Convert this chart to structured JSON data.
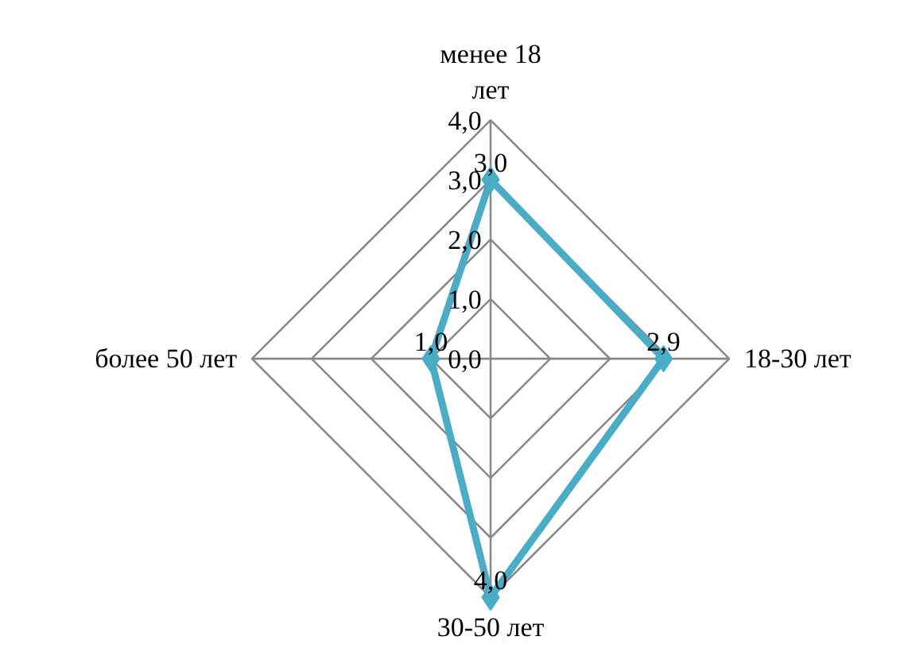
{
  "chart_data": {
    "type": "radar",
    "categories": [
      "менее 18 лет",
      "18-30 лет",
      "30-50 лет",
      "более 50 лет"
    ],
    "series": [
      {
        "color": "#4bacc6",
        "values": [
          3.0,
          2.9,
          4.0,
          1.0
        ],
        "value_labels": [
          "3,0",
          "2,9",
          "4,0",
          "1,0"
        ]
      }
    ],
    "ylim": [
      0,
      4
    ],
    "yticks": [
      {
        "value": 0,
        "label": "0,0"
      },
      {
        "value": 1,
        "label": "1,0"
      },
      {
        "value": 2,
        "label": "2,0"
      },
      {
        "value": 3,
        "label": "3,0"
      },
      {
        "value": 4,
        "label": "4,0"
      }
    ],
    "marker": "diamond",
    "line_style": "solid",
    "grid": true
  }
}
